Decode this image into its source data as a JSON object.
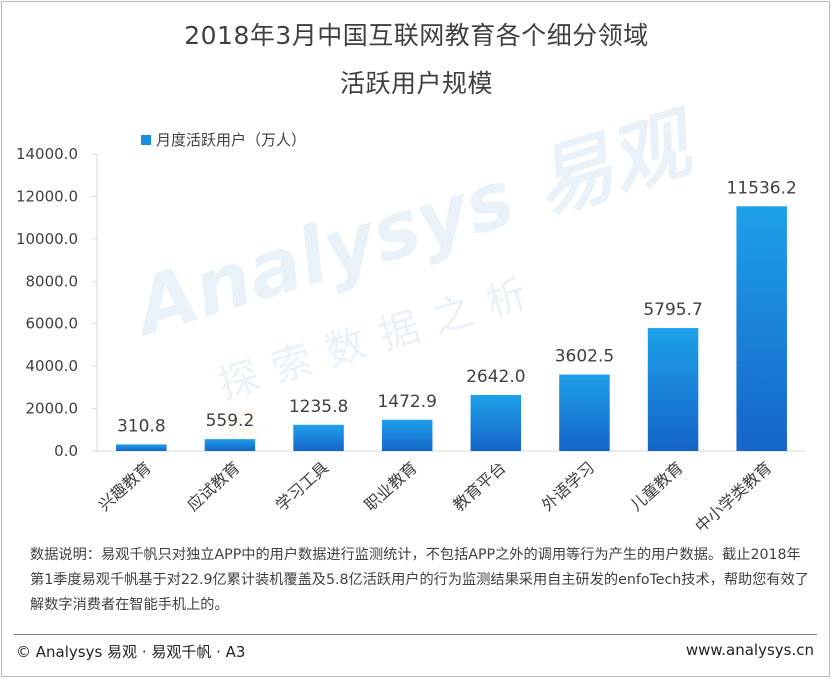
{
  "title_line1": "2018年3月中国互联网教育各个细分领域",
  "title_line2": "活跃用户规模",
  "watermark": {
    "line1": "Analysys 易观",
    "line2": "探索数据之析",
    "line3": "探"
  },
  "note": "数据说明：易观千帆只对独立APP中的用户数据进行监测统计，不包括APP之外的调用等行为产生的用户数据。截止2018年第1季度易观千帆基于对22.9亿累计装机覆盖及5.8亿活跃用户的行为监测结果采用自主研发的enfoTech技术，帮助您有效了解数字消费者在智能手机上的。",
  "footer": {
    "left": "© Analysys 易观 · 易观千帆 · A3",
    "right": "www.analysys.cn"
  },
  "colors": {
    "bar_top": "#1ea0ea",
    "bar_bottom": "#1565c8",
    "legend_swatch": "#1a8ee0",
    "axis": "#d9d9d9"
  },
  "chart_data": {
    "type": "bar",
    "title": "2018年3月中国互联网教育各个细分领域活跃用户规模",
    "xlabel": "",
    "ylabel": "",
    "ylim": [
      0,
      14000
    ],
    "y_ticks": [
      "0.0",
      "2000.0",
      "4000.0",
      "6000.0",
      "8000.0",
      "10000.0",
      "12000.0",
      "14000.0"
    ],
    "grid": false,
    "legend_position": "top-left",
    "categories": [
      "兴趣教育",
      "应试教育",
      "学习工具",
      "职业教育",
      "教育平台",
      "外语学习",
      "儿童教育",
      "中小学类教育"
    ],
    "series": [
      {
        "name": "月度活跃用户（万人）",
        "values": [
          310.8,
          559.2,
          1235.8,
          1472.9,
          2642.0,
          3602.5,
          5795.7,
          11536.2
        ],
        "labels": [
          "310.8",
          "559.2",
          "1235.8",
          "1472.9",
          "2642.0",
          "3602.5",
          "5795.7",
          "11536.2"
        ]
      }
    ]
  }
}
